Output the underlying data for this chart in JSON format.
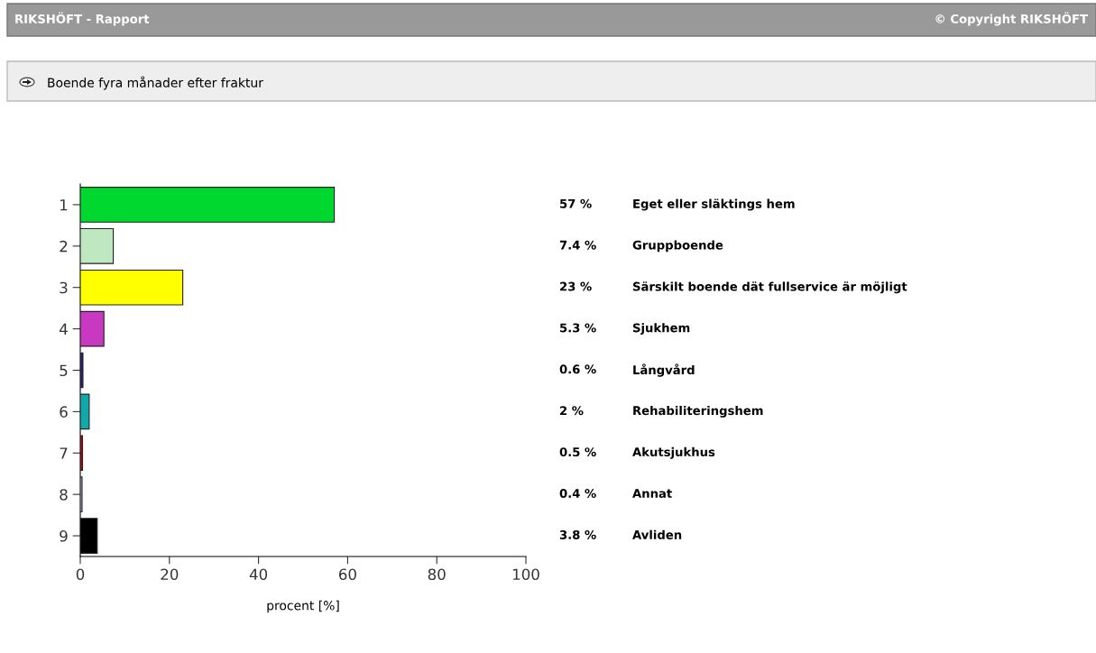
{
  "chart_data": [
    {
      "type": "bar",
      "orientation": "horizontal",
      "title": "Boende fyra månader efter fraktur",
      "xlabel": "procent [%]",
      "categories": [
        "1",
        "2",
        "3",
        "4",
        "5",
        "6",
        "7",
        "8",
        "9"
      ],
      "values": [
        57,
        7.4,
        23,
        5.3,
        0.6,
        2,
        0.5,
        0.4,
        3.8
      ],
      "colors": [
        "#00d830",
        "#c0e8c0",
        "#ffff00",
        "#c838c0",
        "#202080",
        "#10a8a8",
        "#c00000",
        "#b0b0e0",
        "#000000"
      ],
      "xlim": [
        0,
        100
      ],
      "xticks": [
        0,
        20,
        40,
        60,
        80,
        100
      ],
      "annotations": [
        "RIKSHÖFT - Rapport",
        "© Copyright RIKSHÖFT"
      ]
    },
    {
      "type": "other",
      "annotations": [
        "57 %",
        "Eget eller släktings hem",
        "7.4 %",
        "Gruppboende",
        "23 %",
        "Särskilt boende dät fullservice är möjligt",
        "5.3 %",
        "Sjukhem",
        "0.6 %",
        "Långvård",
        "2 %",
        "Rehabiliteringshem",
        "0.5 %",
        "Akutsjukhus",
        "0.4 %",
        "Annat",
        "3.8 %",
        "Avliden"
      ]
    }
  ]
}
